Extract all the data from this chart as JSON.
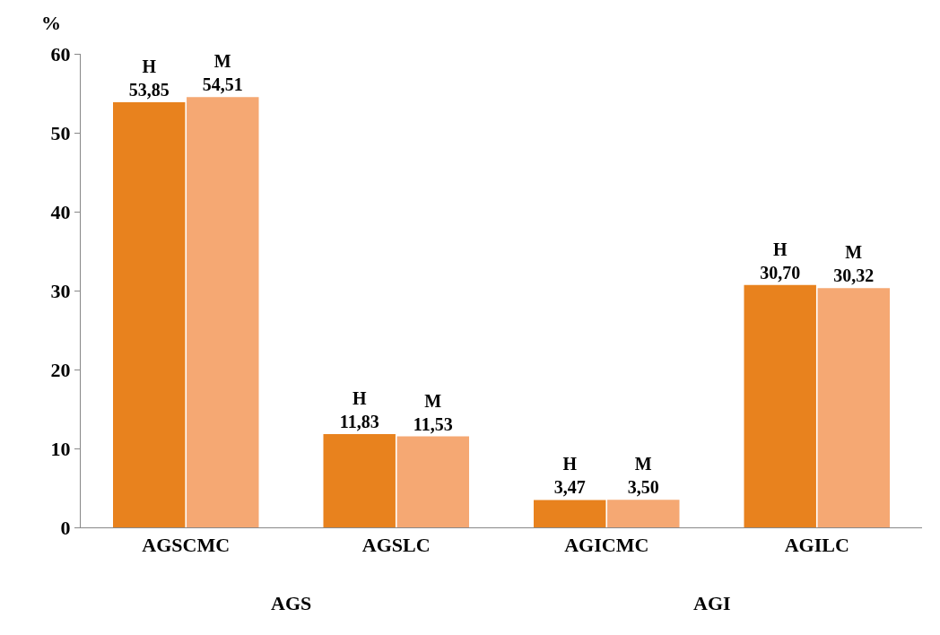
{
  "chart_data": {
    "type": "bar",
    "ylabel": "%",
    "categories": [
      "AGSCMC",
      "AGSLC",
      "AGICMC",
      "AGILC"
    ],
    "series": [
      {
        "name": "H",
        "color": "#e8821e",
        "values": [
          53.85,
          11.83,
          3.47,
          30.7
        ],
        "value_labels": [
          "53,85",
          "11,83",
          "3,47",
          "30,70"
        ]
      },
      {
        "name": "M",
        "color": "#f5a873",
        "values": [
          54.51,
          11.53,
          3.5,
          30.32
        ],
        "value_labels": [
          "54,51",
          "11,53",
          "3,50",
          "30,32"
        ]
      }
    ],
    "annotations": [
      "AGS",
      "AGI"
    ],
    "ylim": [
      0,
      60
    ],
    "yticks": [
      0,
      10,
      20,
      30,
      40,
      50,
      60
    ],
    "legend": false
  }
}
